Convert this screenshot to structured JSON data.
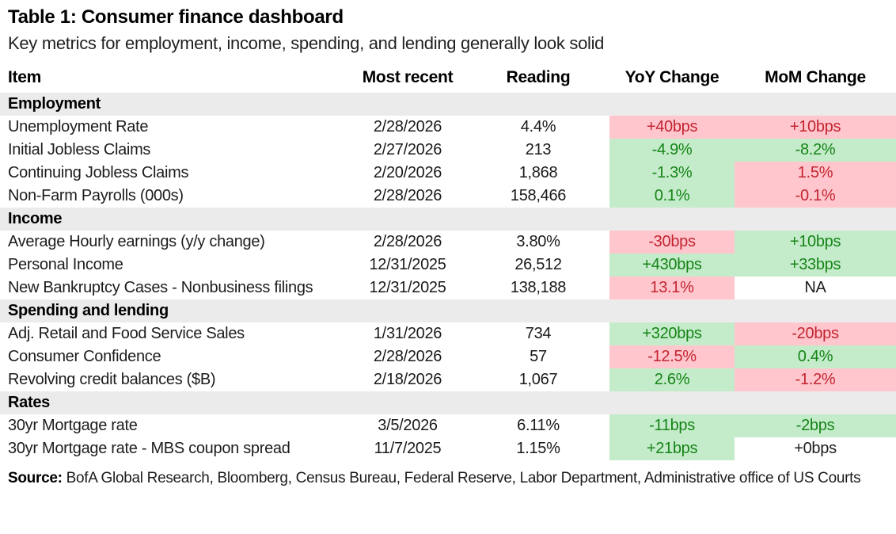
{
  "title": "Table 1: Consumer finance dashboard",
  "subtitle": "Key metrics for employment, income, spending, and lending generally look solid",
  "columns": [
    "Item",
    "Most recent",
    "Reading",
    "YoY Change",
    "MoM Change"
  ],
  "colors": {
    "positive_bg": "#c4ecca",
    "positive_text": "#168417",
    "negative_bg": "#ffc6cd",
    "negative_text": "#c32430",
    "section_bg": "#ebebeb"
  },
  "sections": [
    {
      "name": "Employment",
      "rows": [
        {
          "item": "Unemployment Rate",
          "date": "2/28/2026",
          "reading": "4.4%",
          "yoy": {
            "text": "+40bps",
            "tone": "bad"
          },
          "mom": {
            "text": "+10bps",
            "tone": "bad"
          }
        },
        {
          "item": "Initial Jobless Claims",
          "date": "2/27/2026",
          "reading": "213",
          "yoy": {
            "text": "-4.9%",
            "tone": "good"
          },
          "mom": {
            "text": "-8.2%",
            "tone": "good"
          }
        },
        {
          "item": "Continuing Jobless Claims",
          "date": "2/20/2026",
          "reading": "1,868",
          "yoy": {
            "text": "-1.3%",
            "tone": "good"
          },
          "mom": {
            "text": "1.5%",
            "tone": "bad"
          }
        },
        {
          "item": "Non-Farm Payrolls (000s)",
          "date": "2/28/2026",
          "reading": "158,466",
          "yoy": {
            "text": "0.1%",
            "tone": "good"
          },
          "mom": {
            "text": "-0.1%",
            "tone": "bad"
          }
        }
      ]
    },
    {
      "name": "Income",
      "rows": [
        {
          "item": "Average Hourly earnings (y/y change)",
          "date": "2/28/2026",
          "reading": "3.80%",
          "yoy": {
            "text": "-30bps",
            "tone": "bad"
          },
          "mom": {
            "text": "+10bps",
            "tone": "good"
          }
        },
        {
          "item": "Personal Income",
          "date": "12/31/2025",
          "reading": "26,512",
          "yoy": {
            "text": "+430bps",
            "tone": "good"
          },
          "mom": {
            "text": "+33bps",
            "tone": "good"
          }
        },
        {
          "item": "New Bankruptcy Cases - Nonbusiness filings",
          "date": "12/31/2025",
          "reading": "138,188",
          "yoy": {
            "text": "13.1%",
            "tone": "bad"
          },
          "mom": {
            "text": "NA",
            "tone": "na"
          }
        }
      ]
    },
    {
      "name": "Spending and lending",
      "rows": [
        {
          "item": "Adj. Retail and Food Service Sales",
          "date": "1/31/2026",
          "reading": "734",
          "yoy": {
            "text": "+320bps",
            "tone": "good"
          },
          "mom": {
            "text": "-20bps",
            "tone": "bad"
          }
        },
        {
          "item": "Consumer Confidence",
          "date": "2/28/2026",
          "reading": "57",
          "yoy": {
            "text": "-12.5%",
            "tone": "bad"
          },
          "mom": {
            "text": "0.4%",
            "tone": "good"
          }
        },
        {
          "item": "Revolving credit balances ($B)",
          "date": "2/18/2026",
          "reading": "1,067",
          "yoy": {
            "text": "2.6%",
            "tone": "good"
          },
          "mom": {
            "text": "-1.2%",
            "tone": "bad"
          }
        }
      ]
    },
    {
      "name": "Rates",
      "rows": [
        {
          "item": "30yr Mortgage rate",
          "date": "3/5/2026",
          "reading": "6.11%",
          "yoy": {
            "text": "-11bps",
            "tone": "good"
          },
          "mom": {
            "text": "-2bps",
            "tone": "good"
          }
        },
        {
          "item": "30yr Mortgage rate - MBS coupon spread",
          "date": "11/7/2025",
          "reading": "1.15%",
          "yoy": {
            "text": "+21bps",
            "tone": "good"
          },
          "mom": {
            "text": "+0bps",
            "tone": "na"
          }
        }
      ]
    }
  ],
  "source": {
    "label": "Source:",
    "text": " BofA Global Research, Bloomberg, Census Bureau, Federal Reserve, Labor Department, Administrative office of US Courts"
  }
}
